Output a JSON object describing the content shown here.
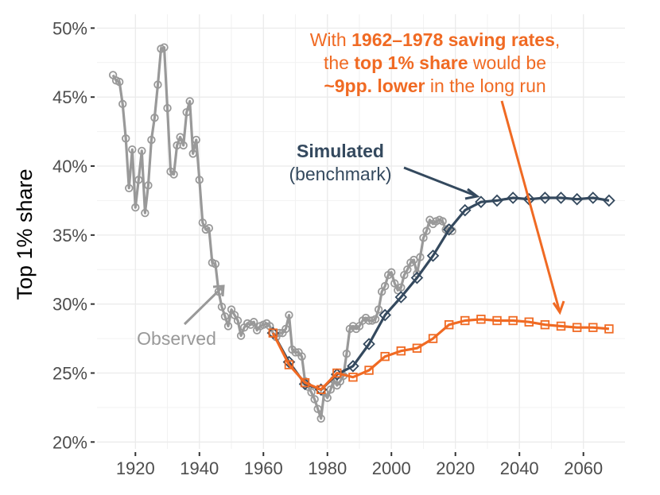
{
  "chart_data": {
    "type": "line",
    "title": "",
    "xlabel": "",
    "ylabel": "Top 1% share",
    "xlim": [
      1908,
      2073
    ],
    "ylim": [
      19.5,
      51
    ],
    "x_ticks": [
      1920,
      1940,
      1960,
      1980,
      2000,
      2020,
      2040,
      2060
    ],
    "y_ticks": [
      20,
      25,
      30,
      35,
      40,
      45,
      50
    ],
    "y_tick_labels": [
      "20%",
      "25%",
      "30%",
      "35%",
      "40%",
      "45%",
      "50%"
    ],
    "grid": true,
    "colors": {
      "observed": "#999999",
      "simulated": "#34495e",
      "counterfactual": "#f06a23"
    },
    "series": [
      {
        "name": "Observed",
        "marker": "circle",
        "x": [
          1913,
          1914,
          1915,
          1916,
          1917,
          1918,
          1919,
          1920,
          1921,
          1922,
          1923,
          1924,
          1925,
          1926,
          1927,
          1928,
          1929,
          1930,
          1931,
          1932,
          1933,
          1934,
          1935,
          1936,
          1937,
          1938,
          1939,
          1940,
          1941,
          1942,
          1943,
          1944,
          1945,
          1946,
          1947,
          1948,
          1949,
          1950,
          1951,
          1952,
          1953,
          1954,
          1955,
          1956,
          1957,
          1958,
          1959,
          1960,
          1961,
          1962,
          1963,
          1964,
          1965,
          1966,
          1967,
          1968,
          1969,
          1970,
          1971,
          1972,
          1973,
          1974,
          1975,
          1976,
          1977,
          1978,
          1979,
          1980,
          1981,
          1982,
          1983,
          1984,
          1985,
          1986,
          1987,
          1988,
          1989,
          1990,
          1991,
          1992,
          1993,
          1994,
          1995,
          1996,
          1997,
          1998,
          1999,
          2000,
          2001,
          2002,
          2003,
          2004,
          2005,
          2006,
          2007,
          2008,
          2009,
          2010,
          2011,
          2012,
          2013,
          2014,
          2015,
          2016,
          2017,
          2018,
          2019
        ],
        "values": [
          46.6,
          46.2,
          46.1,
          44.5,
          42.0,
          38.4,
          41.2,
          37.0,
          39.0,
          41.1,
          36.6,
          38.6,
          41.9,
          43.5,
          45.9,
          48.5,
          48.6,
          44.2,
          39.6,
          39.4,
          41.5,
          42.1,
          41.5,
          43.9,
          44.7,
          40.9,
          41.9,
          39.0,
          35.9,
          35.4,
          35.5,
          33.0,
          32.9,
          30.9,
          29.8,
          29.1,
          28.4,
          29.6,
          29.2,
          28.8,
          27.7,
          28.3,
          28.6,
          28.5,
          28.7,
          28.1,
          28.4,
          28.5,
          28.6,
          28.4,
          27.9,
          27.6,
          27.9,
          27.9,
          28.2,
          29.2,
          26.7,
          26.5,
          26.5,
          26.2,
          24.4,
          24.0,
          23.6,
          23.1,
          22.4,
          21.7,
          23.6,
          23.2,
          23.8,
          24.5,
          24.1,
          24.4,
          24.8,
          26.4,
          28.2,
          28.4,
          28.2,
          28.4,
          28.8,
          29.0,
          28.8,
          28.8,
          28.9,
          29.6,
          30.9,
          31.3,
          32.1,
          32.3,
          31.5,
          31.0,
          31.2,
          32.1,
          32.5,
          33.0,
          33.2,
          32.2,
          33.4,
          34.8,
          35.3,
          36.1,
          35.8,
          36.0,
          36.1,
          36.0,
          35.4,
          35.5,
          35.3
        ]
      },
      {
        "name": "Simulated (benchmark)",
        "marker": "diamond",
        "x": [
          1963,
          1968,
          1973,
          1978,
          1983,
          1988,
          1993,
          1998,
          2003,
          2008,
          2013,
          2018,
          2023,
          2028,
          2033,
          2038,
          2043,
          2048,
          2053,
          2058,
          2063,
          2068
        ],
        "values": [
          27.9,
          25.8,
          24.2,
          23.8,
          24.9,
          25.5,
          27.1,
          29.2,
          30.5,
          31.9,
          33.5,
          35.4,
          36.8,
          37.4,
          37.5,
          37.7,
          37.6,
          37.7,
          37.7,
          37.6,
          37.7,
          37.5
        ]
      },
      {
        "name": "Counterfactual (1962-1978 saving rates)",
        "marker": "square",
        "x": [
          1963,
          1968,
          1973,
          1978,
          1983,
          1988,
          1993,
          1998,
          2003,
          2008,
          2013,
          2018,
          2023,
          2028,
          2033,
          2038,
          2043,
          2048,
          2053,
          2058,
          2063,
          2068
        ],
        "values": [
          27.9,
          25.6,
          24.3,
          23.8,
          25.0,
          24.7,
          25.2,
          26.2,
          26.6,
          26.8,
          27.5,
          28.5,
          28.8,
          28.9,
          28.8,
          28.8,
          28.7,
          28.5,
          28.4,
          28.3,
          28.3,
          28.2
        ]
      }
    ],
    "annotations": {
      "observed": "Observed",
      "simulated_line1": "Simulated",
      "simulated_line2": "(benchmark)",
      "cf_l1a": "With ",
      "cf_l1b": "1962–1978 saving rates",
      "cf_l1c": ",",
      "cf_l2a": "the ",
      "cf_l2b": "top 1% share",
      "cf_l2c": " would be",
      "cf_l3a": "~9pp. lower",
      "cf_l3b": " in the long run"
    }
  }
}
